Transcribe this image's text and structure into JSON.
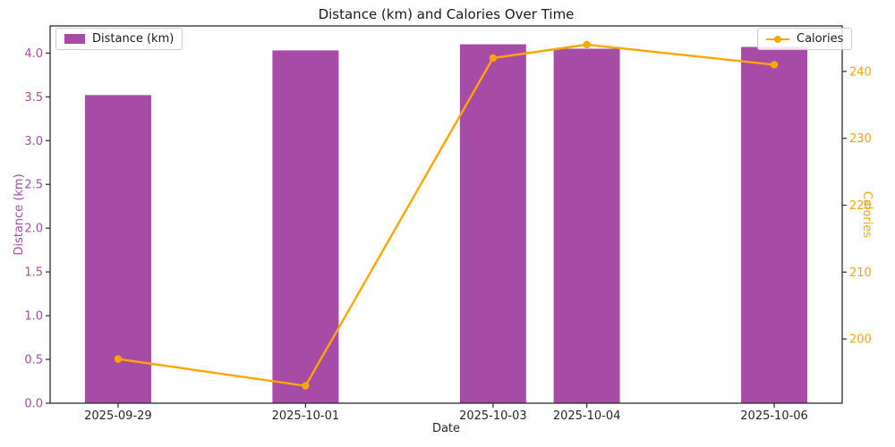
{
  "title": "Distance (km) and Calories Over Time",
  "chart_data": {
    "type": "combo-bar-line",
    "title": "Distance (km) and Calories Over Time",
    "xlabel": "Date",
    "categories": [
      "2025-09-29",
      "2025-10-01",
      "2025-10-03",
      "2025-10-04",
      "2025-10-06"
    ],
    "x_day_offsets": [
      0,
      2,
      4,
      5,
      7
    ],
    "series": [
      {
        "name": "Distance (km)",
        "type": "bar",
        "yaxis": "left",
        "color": "#a64ca6",
        "values": [
          3.52,
          4.03,
          4.1,
          4.05,
          4.07
        ]
      },
      {
        "name": "Calories",
        "type": "line",
        "yaxis": "right",
        "color": "#ffa500",
        "values": [
          197,
          193,
          242,
          244,
          241
        ]
      }
    ],
    "left_axis": {
      "label": "Distance (km)",
      "color": "#a64ca6",
      "ticks": [
        "0.0",
        "0.5",
        "1.0",
        "1.5",
        "2.0",
        "2.5",
        "3.0",
        "3.5",
        "4.0"
      ],
      "lim": [
        0,
        4.31
      ]
    },
    "right_axis": {
      "label": "Calories",
      "color": "#ffa500",
      "ticks": [
        "200",
        "210",
        "220",
        "230",
        "240"
      ],
      "lim": [
        190.4,
        246.8
      ]
    },
    "xlim_days": [
      -0.725,
      7.725
    ],
    "grid": false,
    "legend": [
      {
        "label": "Distance (km)",
        "position": "upper-left",
        "marker": "swatch"
      },
      {
        "label": "Calories",
        "position": "upper-right",
        "marker": "line-dot"
      }
    ],
    "spine_color": "#2b2b2b",
    "x_tick_color": "#262626"
  }
}
